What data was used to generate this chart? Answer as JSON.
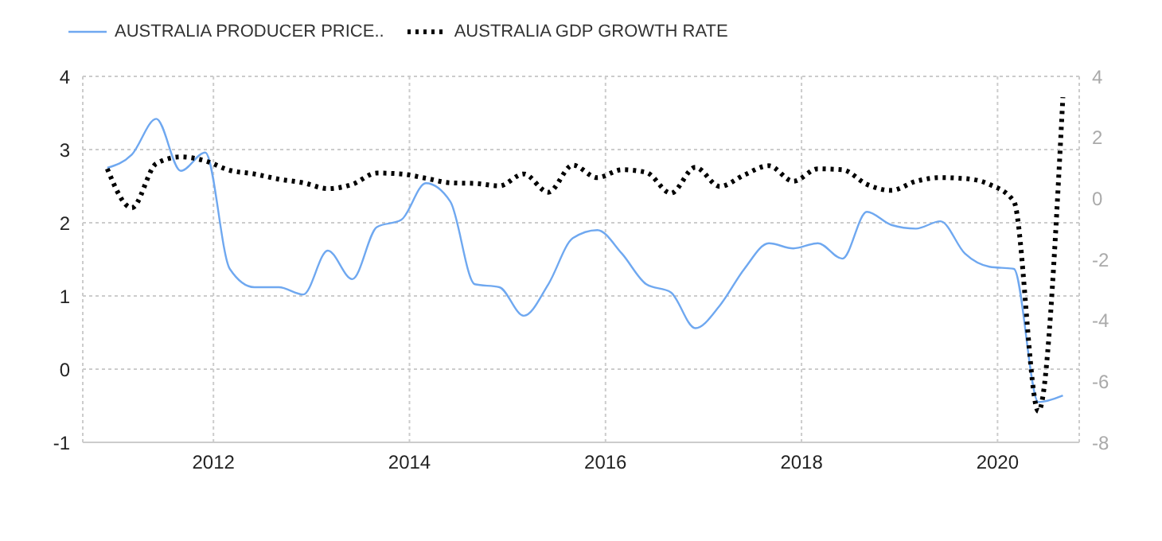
{
  "chart_data": {
    "type": "line",
    "x": [
      "2010-12",
      "2011-03",
      "2011-06",
      "2011-09",
      "2011-12",
      "2012-03",
      "2012-06",
      "2012-09",
      "2012-12",
      "2013-03",
      "2013-06",
      "2013-09",
      "2013-12",
      "2014-03",
      "2014-06",
      "2014-09",
      "2014-12",
      "2015-03",
      "2015-06",
      "2015-09",
      "2015-12",
      "2016-03",
      "2016-06",
      "2016-09",
      "2016-12",
      "2017-03",
      "2017-06",
      "2017-09",
      "2017-12",
      "2018-03",
      "2018-06",
      "2018-09",
      "2018-12",
      "2019-03",
      "2019-06",
      "2019-09",
      "2019-12",
      "2020-03",
      "2020-06",
      "2020-09"
    ],
    "series": [
      {
        "name": "AUSTRALIA PRODUCER PRICE..",
        "color": "#6fa8f0",
        "line_style": "solid",
        "values": [
          2.75,
          2.93,
          3.42,
          2.71,
          2.96,
          1.37,
          1.12,
          1.12,
          1.02,
          1.62,
          1.23,
          1.94,
          2.04,
          2.54,
          2.29,
          1.16,
          1.12,
          0.73,
          1.16,
          1.79,
          1.9,
          1.58,
          1.16,
          1.05,
          0.56,
          0.87,
          1.37,
          1.72,
          1.65,
          1.72,
          1.51,
          2.15,
          1.97,
          1.92,
          2.02,
          1.58,
          1.4,
          1.37,
          -0.45,
          -0.36
        ]
      },
      {
        "name": "AUSTRALIA GDP GROWTH RATE",
        "color": "#000000",
        "line_style": "dotted",
        "axis": "y2",
        "values": [
          0.97,
          -0.31,
          1.14,
          1.36,
          1.23,
          0.92,
          0.8,
          0.63,
          0.51,
          0.32,
          0.46,
          0.83,
          0.8,
          0.66,
          0.51,
          0.49,
          0.41,
          0.8,
          0.2,
          1.09,
          0.68,
          0.94,
          0.85,
          0.17,
          1.02,
          0.39,
          0.77,
          1.07,
          0.56,
          0.97,
          0.94,
          0.46,
          0.26,
          0.56,
          0.68,
          0.65,
          0.46,
          -0.1,
          -6.98,
          3.32
        ]
      }
    ],
    "xlim": [
      "2010-09",
      "2020-11"
    ],
    "xticks": [
      "2012",
      "2014",
      "2016",
      "2018",
      "2020"
    ],
    "ylim": [
      -1,
      4
    ],
    "yticks": [
      -1,
      0,
      1,
      2,
      3,
      4
    ],
    "y2lim": [
      -8,
      4
    ],
    "y2ticks": [
      -8,
      -6,
      -4,
      -2,
      0,
      2,
      4
    ],
    "grid": true,
    "legend": "top left",
    "marker": "none"
  }
}
